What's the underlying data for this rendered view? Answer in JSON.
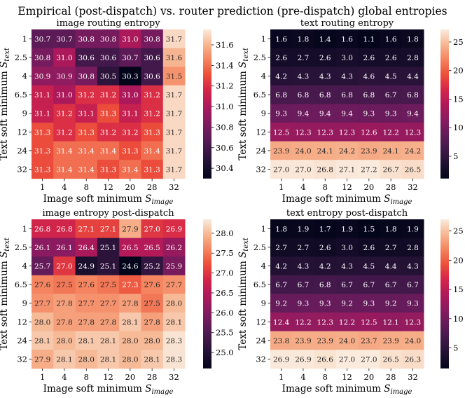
{
  "figure": {
    "suptitle": "Empirical (post-dispatch) vs. router prediction (pre-dispatch) global entropies"
  },
  "chart_data": [
    {
      "type": "heatmap",
      "title": "image routing entropy",
      "xlabel": "Image soft minimum",
      "xlabel_sub": "image",
      "ylabel": "Text soft minimum",
      "ylabel_sub": "text",
      "x_categories": [
        "1",
        "4",
        "8",
        "12",
        "20",
        "28",
        "32"
      ],
      "y_categories": [
        "1",
        "2.5",
        "4",
        "6.5",
        "9",
        "12",
        "24",
        "32"
      ],
      "values": [
        [
          30.7,
          30.7,
          30.8,
          30.8,
          31.0,
          30.8,
          31.7
        ],
        [
          30.8,
          31.0,
          30.6,
          30.6,
          30.7,
          30.6,
          31.6
        ],
        [
          30.9,
          30.9,
          30.8,
          30.5,
          30.3,
          30.6,
          31.5
        ],
        [
          31.1,
          31.0,
          31.2,
          31.2,
          31.0,
          31.2,
          31.7
        ],
        [
          31.1,
          31.2,
          31.1,
          31.3,
          31.1,
          31.2,
          31.7
        ],
        [
          31.3,
          31.2,
          31.3,
          31.2,
          31.2,
          31.3,
          31.7
        ],
        [
          31.3,
          31.4,
          31.4,
          31.4,
          31.3,
          31.4,
          31.7
        ],
        [
          31.3,
          31.4,
          31.4,
          31.3,
          31.4,
          31.3,
          31.7
        ]
      ],
      "vmin": 30.3,
      "vmax": 31.75,
      "colorbar_ticks": [
        "30.4",
        "30.6",
        "30.8",
        "31.0",
        "31.2",
        "31.4",
        "31.6"
      ]
    },
    {
      "type": "heatmap",
      "title": "text routing entropy",
      "xlabel": "Image soft minimum",
      "xlabel_sub": "image",
      "ylabel": "Text soft minimum",
      "ylabel_sub": "text",
      "x_categories": [
        "1",
        "4",
        "8",
        "12",
        "20",
        "28",
        "32"
      ],
      "y_categories": [
        "1",
        "2.5",
        "4",
        "6.5",
        "9",
        "12",
        "24",
        "32"
      ],
      "values": [
        [
          1.6,
          1.8,
          1.4,
          1.6,
          1.1,
          1.6,
          1.8
        ],
        [
          2.6,
          2.7,
          2.6,
          3.0,
          2.6,
          2.6,
          2.8
        ],
        [
          4.2,
          4.3,
          4.3,
          4.3,
          4.6,
          4.5,
          4.4
        ],
        [
          6.8,
          6.8,
          6.8,
          6.8,
          6.8,
          6.7,
          6.8
        ],
        [
          9.3,
          9.4,
          9.4,
          9.4,
          9.3,
          9.3,
          9.4
        ],
        [
          12.5,
          12.3,
          12.3,
          12.3,
          12.6,
          12.2,
          12.3
        ],
        [
          23.9,
          24.0,
          24.1,
          24.2,
          23.9,
          24.1,
          24.2
        ],
        [
          27.0,
          27.0,
          26.8,
          27.1,
          27.2,
          26.7,
          26.5
        ]
      ],
      "vmin": 1.1,
      "vmax": 27.2,
      "colorbar_ticks": [
        "5",
        "10",
        "15",
        "20",
        "25"
      ]
    },
    {
      "type": "heatmap",
      "title": "image entropy post-dispatch",
      "xlabel": "Image soft minimum",
      "xlabel_sub": "image",
      "ylabel": "Text soft minimum",
      "ylabel_sub": "text",
      "x_categories": [
        "1",
        "4",
        "8",
        "12",
        "20",
        "28",
        "32"
      ],
      "y_categories": [
        "1",
        "2.5",
        "4",
        "6.5",
        "9",
        "12",
        "24",
        "32"
      ],
      "values": [
        [
          26.8,
          26.8,
          27.1,
          27.1,
          27.9,
          27.0,
          26.9
        ],
        [
          26.1,
          26.1,
          26.4,
          25.1,
          26.5,
          26.5,
          26.2
        ],
        [
          25.7,
          27.0,
          24.9,
          25.1,
          24.6,
          25.2,
          25.9
        ],
        [
          27.6,
          27.5,
          27.6,
          27.5,
          27.3,
          27.6,
          27.7
        ],
        [
          27.7,
          27.8,
          27.7,
          27.7,
          27.8,
          27.5,
          28.0
        ],
        [
          28.0,
          27.8,
          27.8,
          27.8,
          28.1,
          27.8,
          28.1
        ],
        [
          28.1,
          28.0,
          28.1,
          28.1,
          28.0,
          28.0,
          28.3
        ],
        [
          27.9,
          28.1,
          28.0,
          28.1,
          28.0,
          28.1,
          28.3
        ]
      ],
      "vmin": 24.6,
      "vmax": 28.35,
      "colorbar_ticks": [
        "25.0",
        "25.5",
        "26.0",
        "26.5",
        "27.0",
        "27.5",
        "28.0"
      ]
    },
    {
      "type": "heatmap",
      "title": "text entropy post-dispatch",
      "xlabel": "Image soft minimum",
      "xlabel_sub": "image",
      "ylabel": "Text soft minimum",
      "ylabel_sub": "text",
      "x_categories": [
        "1",
        "4",
        "8",
        "12",
        "20",
        "28",
        "32"
      ],
      "y_categories": [
        "1",
        "2.5",
        "4",
        "6.5",
        "9",
        "12",
        "24",
        "32"
      ],
      "values": [
        [
          1.8,
          1.9,
          1.7,
          1.9,
          1.5,
          1.8,
          1.9
        ],
        [
          2.7,
          2.7,
          2.6,
          3.0,
          2.6,
          2.7,
          2.8
        ],
        [
          4.2,
          4.3,
          4.2,
          4.3,
          4.5,
          4.4,
          4.3
        ],
        [
          6.7,
          6.7,
          6.8,
          6.7,
          6.7,
          6.7,
          6.7
        ],
        [
          9.2,
          9.3,
          9.3,
          9.2,
          9.3,
          9.2,
          9.3
        ],
        [
          12.4,
          12.2,
          12.3,
          12.2,
          12.5,
          12.1,
          12.3
        ],
        [
          23.8,
          23.9,
          23.9,
          24.0,
          23.7,
          23.9,
          24.0
        ],
        [
          26.9,
          26.9,
          26.6,
          27.0,
          27.0,
          26.5,
          26.3
        ]
      ],
      "vmin": 1.5,
      "vmax": 27.0,
      "colorbar_ticks": [
        "5",
        "10",
        "15",
        "20",
        "25"
      ]
    }
  ]
}
